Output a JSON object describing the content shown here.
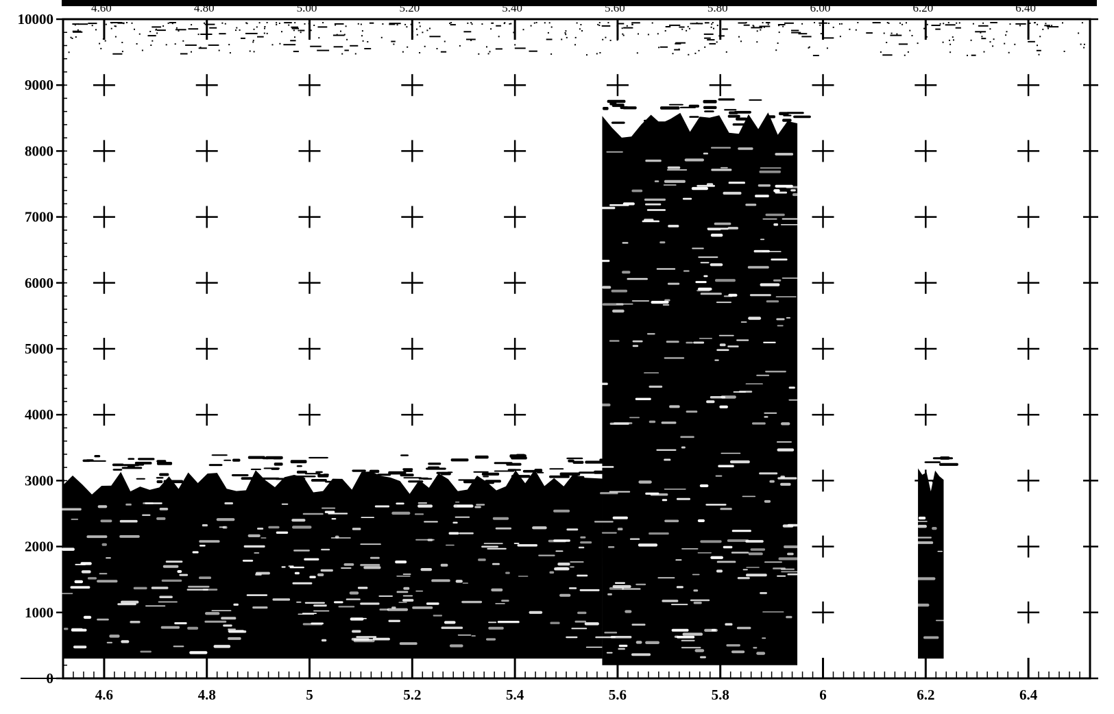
{
  "chart_data": {
    "type": "heatmap",
    "title": "",
    "xlabel": "",
    "ylabel": "",
    "xlim": [
      4.52,
      6.52
    ],
    "ylim": [
      0,
      10000
    ],
    "grid": "cross-markers",
    "legend": "none",
    "x_ticks": [
      "4.6",
      "4.8",
      "5",
      "5.2",
      "5.4",
      "5.6",
      "5.8",
      "6",
      "6.2",
      "6.4"
    ],
    "x_tick_values": [
      4.6,
      4.8,
      5.0,
      5.2,
      5.4,
      5.6,
      5.8,
      6.0,
      6.2,
      6.4
    ],
    "y_ticks": [
      "0",
      "1000",
      "2000",
      "3000",
      "4000",
      "5000",
      "6000",
      "7000",
      "8000",
      "9000",
      "10000"
    ],
    "y_tick_values": [
      0,
      1000,
      2000,
      3000,
      4000,
      5000,
      6000,
      7000,
      8000,
      9000,
      10000
    ],
    "top_axis_ticks": [
      "4.60",
      "4.80",
      "5.00",
      "5.20",
      "5.40",
      "5.60",
      "5.80",
      "6.00",
      "6.20",
      "6.40"
    ],
    "regions": [
      {
        "x_start": 4.52,
        "x_end": 5.57,
        "y_bottom": 300,
        "y_top": 3100
      },
      {
        "x_start": 5.57,
        "x_end": 5.95,
        "y_bottom": 200,
        "y_top": 8500
      },
      {
        "x_start": 6.185,
        "x_end": 6.235,
        "y_bottom": 300,
        "y_top": 3100
      }
    ],
    "colors": {
      "ink": "#000000",
      "background": "#ffffff"
    }
  }
}
